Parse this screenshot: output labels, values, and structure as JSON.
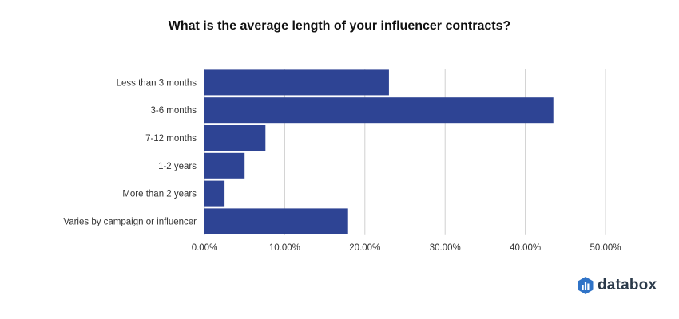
{
  "chart_data": {
    "type": "bar",
    "orientation": "horizontal",
    "title": "What is the average length of your influencer contracts?",
    "categories": [
      "Less than 3 months",
      "3-6 months",
      "7-12 months",
      "1-2 years",
      "More than 2 years",
      "Varies by campaign or influencer"
    ],
    "values": [
      23.0,
      43.5,
      7.6,
      5.0,
      2.5,
      17.9
    ],
    "xlim": [
      0,
      50
    ],
    "xticks": [
      0,
      10,
      20,
      30,
      40,
      50
    ],
    "xtick_labels": [
      "0.00%",
      "10.00%",
      "20.00%",
      "30.00%",
      "40.00%",
      "50.00%"
    ],
    "xlabel": "",
    "ylabel": "",
    "grid": "vertical",
    "legend": "none",
    "bar_color": "#2E4494"
  },
  "brand": {
    "name": "databox",
    "logo_icon": "databox-logo-icon",
    "logo_color": "#2F73C7"
  }
}
